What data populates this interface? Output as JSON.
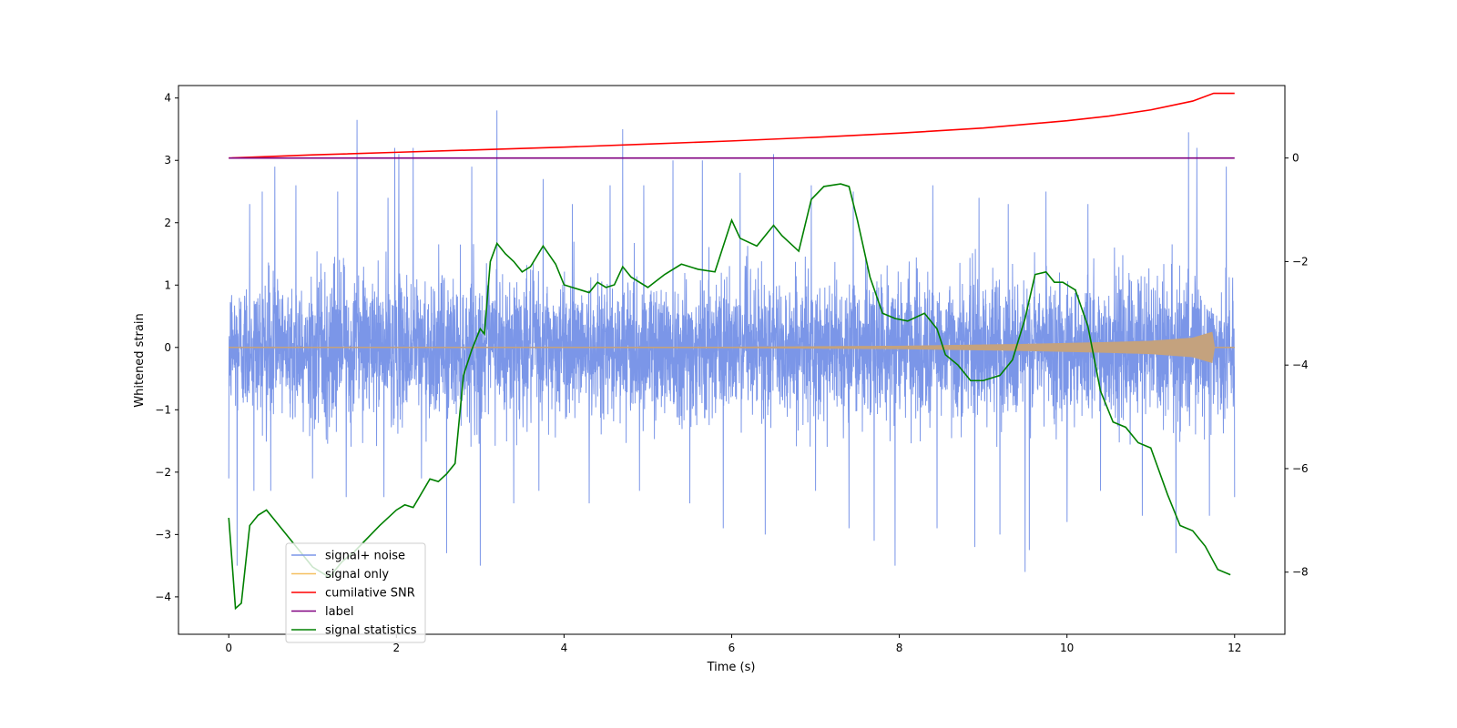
{
  "chart_data": {
    "type": "line",
    "title": "",
    "xlabel": "Time (s)",
    "ylabel": "Whitened strain",
    "ylabel_right": "",
    "xlim": [
      -0.6,
      12.6
    ],
    "ylim": [
      -4.6,
      4.2
    ],
    "ylim_right": [
      -9.2,
      1.4
    ],
    "xticks": [
      0,
      2,
      4,
      6,
      8,
      10,
      12
    ],
    "yticks": [
      -4,
      -3,
      -2,
      -1,
      0,
      1,
      2,
      3,
      4
    ],
    "yticks_right": [
      -8,
      -6,
      -4,
      -2,
      0
    ],
    "grid": false,
    "legend_position": "lower-left",
    "colors": {
      "signal_noise": "#7b96e8",
      "signal_only": "#f5c060",
      "signal_envelope": "#c4a27e",
      "cumulative_snr": "#ff0000",
      "label": "#800080",
      "signal_statistics": "#008000"
    },
    "series": [
      {
        "name": "signal+ noise",
        "axis": "left",
        "kind": "noise",
        "x_range": [
          0,
          12
        ],
        "typical_range": [
          -1.6,
          1.7
        ],
        "peaks_max": [
          [
            0.0,
            2.1
          ],
          [
            0.25,
            2.3
          ],
          [
            0.4,
            2.5
          ],
          [
            0.55,
            2.9
          ],
          [
            0.8,
            2.6
          ],
          [
            1.3,
            2.5
          ],
          [
            1.53,
            3.65
          ],
          [
            1.9,
            2.4
          ],
          [
            1.98,
            3.2
          ],
          [
            2.03,
            3.1
          ],
          [
            2.2,
            3.2
          ],
          [
            2.6,
            2.6
          ],
          [
            2.9,
            2.9
          ],
          [
            3.2,
            3.8
          ],
          [
            3.75,
            2.7
          ],
          [
            4.1,
            2.3
          ],
          [
            4.55,
            2.6
          ],
          [
            4.7,
            3.5
          ],
          [
            4.95,
            2.6
          ],
          [
            5.3,
            3.0
          ],
          [
            5.65,
            3.0
          ],
          [
            6.1,
            2.8
          ],
          [
            6.5,
            3.1
          ],
          [
            6.95,
            2.6
          ],
          [
            7.45,
            2.5
          ],
          [
            7.95,
            3.0
          ],
          [
            8.4,
            2.6
          ],
          [
            8.95,
            2.4
          ],
          [
            9.3,
            2.3
          ],
          [
            9.75,
            2.5
          ],
          [
            10.25,
            2.3
          ],
          [
            10.9,
            2.4
          ],
          [
            11.3,
            3.3
          ],
          [
            11.45,
            3.45
          ],
          [
            11.55,
            3.2
          ],
          [
            11.9,
            2.9
          ],
          [
            12.0,
            2.7
          ]
        ],
        "peaks_min": [
          [
            0.0,
            -2.1
          ],
          [
            0.1,
            -3.5
          ],
          [
            0.3,
            -2.3
          ],
          [
            0.5,
            -2.3
          ],
          [
            1.0,
            -2.1
          ],
          [
            1.4,
            -2.4
          ],
          [
            1.85,
            -2.4
          ],
          [
            2.3,
            -2.1
          ],
          [
            2.6,
            -3.3
          ],
          [
            3.0,
            -3.5
          ],
          [
            3.4,
            -2.5
          ],
          [
            3.7,
            -2.3
          ],
          [
            4.3,
            -2.5
          ],
          [
            4.9,
            -2.3
          ],
          [
            5.5,
            -2.5
          ],
          [
            5.9,
            -2.9
          ],
          [
            6.4,
            -3.0
          ],
          [
            7.0,
            -2.3
          ],
          [
            7.4,
            -2.9
          ],
          [
            7.7,
            -3.1
          ],
          [
            7.95,
            -3.5
          ],
          [
            8.45,
            -2.9
          ],
          [
            8.9,
            -3.2
          ],
          [
            9.2,
            -3.0
          ],
          [
            9.5,
            -3.6
          ],
          [
            9.55,
            -3.25
          ],
          [
            10.0,
            -2.8
          ],
          [
            10.4,
            -2.3
          ],
          [
            10.9,
            -2.7
          ],
          [
            11.3,
            -3.3
          ],
          [
            11.7,
            -2.7
          ],
          [
            12.0,
            -2.4
          ]
        ]
      },
      {
        "name": "signal only",
        "axis": "left",
        "kind": "chirp",
        "x_range": [
          0,
          12
        ],
        "amplitude": [
          [
            0.0,
            0.0
          ],
          [
            6.0,
            0.005
          ],
          [
            8.0,
            0.02
          ],
          [
            9.5,
            0.05
          ],
          [
            10.5,
            0.08
          ],
          [
            11.0,
            0.1
          ],
          [
            11.5,
            0.15
          ],
          [
            11.75,
            0.25
          ],
          [
            11.76,
            0.0
          ],
          [
            12.0,
            0.0
          ]
        ]
      },
      {
        "name": "cumilative SNR",
        "axis": "right",
        "x": [
          0,
          1,
          2,
          3,
          4,
          5,
          6,
          7,
          8,
          9,
          10,
          10.5,
          11,
          11.5,
          11.75,
          12
        ],
        "y": [
          0,
          0.06,
          0.11,
          0.16,
          0.21,
          0.27,
          0.33,
          0.4,
          0.48,
          0.58,
          0.72,
          0.81,
          0.93,
          1.1,
          1.25,
          1.25
        ]
      },
      {
        "name": "label",
        "axis": "right",
        "x": [
          0,
          12
        ],
        "y": [
          0,
          0
        ]
      },
      {
        "name": "signal statistics",
        "axis": "right",
        "x": [
          0,
          0.08,
          0.15,
          0.25,
          0.35,
          0.45,
          0.6,
          0.8,
          1.0,
          1.2,
          1.35,
          1.5,
          1.8,
          2.0,
          2.1,
          2.2,
          2.4,
          2.5,
          2.6,
          2.7,
          2.8,
          2.9,
          3.0,
          3.05,
          3.12,
          3.2,
          3.3,
          3.4,
          3.5,
          3.6,
          3.75,
          3.9,
          4.0,
          4.1,
          4.2,
          4.3,
          4.4,
          4.5,
          4.6,
          4.7,
          4.8,
          5.0,
          5.2,
          5.4,
          5.6,
          5.8,
          6.0,
          6.1,
          6.3,
          6.5,
          6.6,
          6.8,
          6.95,
          7.1,
          7.3,
          7.4,
          7.5,
          7.65,
          7.8,
          7.95,
          8.1,
          8.3,
          8.45,
          8.55,
          8.7,
          8.85,
          9.0,
          9.2,
          9.35,
          9.5,
          9.62,
          9.75,
          9.85,
          9.95,
          10.1,
          10.25,
          10.4,
          10.55,
          10.7,
          10.85,
          11.0,
          11.2,
          11.35,
          11.5,
          11.65,
          11.8,
          11.95
        ],
        "y": [
          -6.95,
          -8.7,
          -8.6,
          -7.1,
          -6.9,
          -6.8,
          -7.1,
          -7.5,
          -7.9,
          -8.1,
          -7.8,
          -7.6,
          -7.1,
          -6.8,
          -6.7,
          -6.75,
          -6.2,
          -6.25,
          -6.1,
          -5.9,
          -4.2,
          -3.7,
          -3.3,
          -3.4,
          -2.0,
          -1.65,
          -1.85,
          -2.0,
          -2.2,
          -2.1,
          -1.7,
          -2.05,
          -2.45,
          -2.5,
          -2.55,
          -2.6,
          -2.4,
          -2.5,
          -2.45,
          -2.1,
          -2.3,
          -2.5,
          -2.25,
          -2.05,
          -2.15,
          -2.2,
          -1.2,
          -1.55,
          -1.7,
          -1.3,
          -1.5,
          -1.8,
          -0.8,
          -0.55,
          -0.5,
          -0.55,
          -1.2,
          -2.3,
          -3.0,
          -3.1,
          -3.15,
          -3.0,
          -3.3,
          -3.8,
          -4.0,
          -4.3,
          -4.3,
          -4.2,
          -3.9,
          -3.1,
          -2.25,
          -2.2,
          -2.4,
          -2.4,
          -2.55,
          -3.25,
          -4.5,
          -5.1,
          -5.2,
          -5.5,
          -5.6,
          -6.5,
          -7.1,
          -7.2,
          -7.5,
          -7.95,
          -8.05
        ]
      }
    ]
  }
}
